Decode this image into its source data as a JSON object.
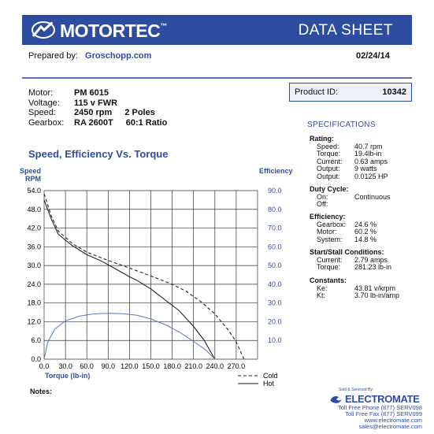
{
  "header": {
    "brand": "MOTORTEC",
    "brand_tm": "™",
    "doc_title": "DATA SHEET"
  },
  "prepared": {
    "label": "Prepared by:",
    "value": "Groschopp.com"
  },
  "date": "02/24/14",
  "motor": {
    "motor_label": "Motor:",
    "motor_value": "PM  6015",
    "voltage_label": "Voltage:",
    "voltage_value": "115 v FWR",
    "speed_label": "Speed:",
    "speed_value": "2450 rpm",
    "speed_poles": "2 Poles",
    "gearbox_label": "Gearbox:",
    "gearbox_value": "RA 2600T",
    "gearbox_ratio": "60:1 Ratio"
  },
  "product": {
    "label": "Product ID:",
    "value": "10342"
  },
  "specifications": {
    "title": "SPECIFICATIONS",
    "rating": {
      "heading": "Rating:",
      "speed_k": "Speed:",
      "speed_v": "40.7 rpm",
      "torque_k": "Torque:",
      "torque_v": "19.4lb-in",
      "current_k": "Current:",
      "current_v": "0.63 amps",
      "output1_k": "Output:",
      "output1_v": "9 watts",
      "output2_k": "Output:",
      "output2_v": "0.0125 HP"
    },
    "duty": {
      "heading": "Duty Cycle:",
      "on_k": "On:",
      "on_v": "Continuous",
      "off_k": "Off:",
      "off_v": ""
    },
    "efficiency": {
      "heading": "Efficiency:",
      "gearbox_k": "Gearbox:",
      "gearbox_v": "24.6 %",
      "motor_k": "Motor:",
      "motor_v": "60.2 %",
      "system_k": "System:",
      "system_v": "14.8 %"
    },
    "stall": {
      "heading": "Start/Stall Conditions:",
      "current_k": "Current:",
      "current_v": "2.79 amps",
      "torque_k": "Torque:",
      "torque_v": "281.23 lb-in"
    },
    "constants": {
      "heading": "Constants:",
      "ke_k": "Ke:",
      "ke_v": "43.81 v/krpm",
      "kt_k": "Kt:",
      "kt_v": "3.70 lb-in/amp"
    }
  },
  "chart_data": {
    "type": "line",
    "title": "Speed, Efficiency Vs. Torque",
    "ylabel_left_1": "Speed",
    "ylabel_left_2": "RPM",
    "ylabel_right": "Efficiency",
    "xlabel": "Torque  (lb-in)",
    "xlim": [
      0,
      300
    ],
    "ylim_left": [
      0,
      54
    ],
    "ylim_right": [
      0,
      90
    ],
    "x_ticks": [
      "0.0",
      "30.0",
      "60.0",
      "90.0",
      "120.0",
      "150.0",
      "180.0",
      "210.0",
      "240.0",
      "270.0"
    ],
    "y_left_ticks": [
      "0.0",
      "6.0",
      "12.0",
      "18.0",
      "24.0",
      "30.0",
      "36.0",
      "42.0",
      "48.0",
      "54.0"
    ],
    "y_right_ticks": [
      "10.0",
      "20.0",
      "30.0",
      "40.0",
      "50.0",
      "60.0",
      "70.0",
      "80.0",
      "90.0"
    ],
    "grid": true,
    "legend_cold": "Cold",
    "legend_hot": "Hot",
    "series": [
      {
        "name": "Cold",
        "axis": "left",
        "style": "dashed",
        "x": [
          0,
          10,
          20,
          40,
          60,
          80,
          100,
          120,
          140,
          160,
          180,
          200,
          220,
          240,
          260,
          270,
          281
        ],
        "y": [
          53,
          46,
          41,
          37,
          34.3,
          32.5,
          30.8,
          29.2,
          27.5,
          25.8,
          24,
          21.7,
          18.5,
          14.5,
          9,
          5.5,
          0
        ]
      },
      {
        "name": "Hot",
        "axis": "left",
        "style": "solid",
        "x": [
          0,
          10,
          20,
          40,
          60,
          80,
          100,
          120,
          130,
          150,
          170,
          190,
          210,
          225,
          235,
          240
        ],
        "y": [
          51,
          45,
          40,
          36.3,
          33.5,
          31.5,
          29,
          26.4,
          25.3,
          22.5,
          19,
          15.5,
          10.5,
          6,
          2,
          0
        ]
      },
      {
        "name": "Efficiency",
        "axis": "right",
        "style": "solid",
        "color": "#5a78b8",
        "x": [
          0,
          5,
          15,
          30,
          50,
          70,
          90,
          110,
          130,
          150,
          170,
          190,
          210,
          225,
          235,
          240
        ],
        "y": [
          0,
          9,
          16,
          20.5,
          23,
          24.2,
          24.5,
          24.3,
          23.5,
          21.5,
          18.5,
          14.5,
          9.5,
          5.5,
          2,
          0
        ]
      }
    ]
  },
  "notes_label": "Notes:",
  "distributor": {
    "sold": "Sold & Serviced By:",
    "name": "ELECTROMATE",
    "phone": "Toll Free Phone  (877) SERV098",
    "fax": "Toll Free Fax  (877) SERV099",
    "web": "www.electromate.com",
    "email": "sales@electromate.com"
  },
  "colors": {
    "brand": "#2f4da0",
    "accent": "#5a78b8"
  }
}
